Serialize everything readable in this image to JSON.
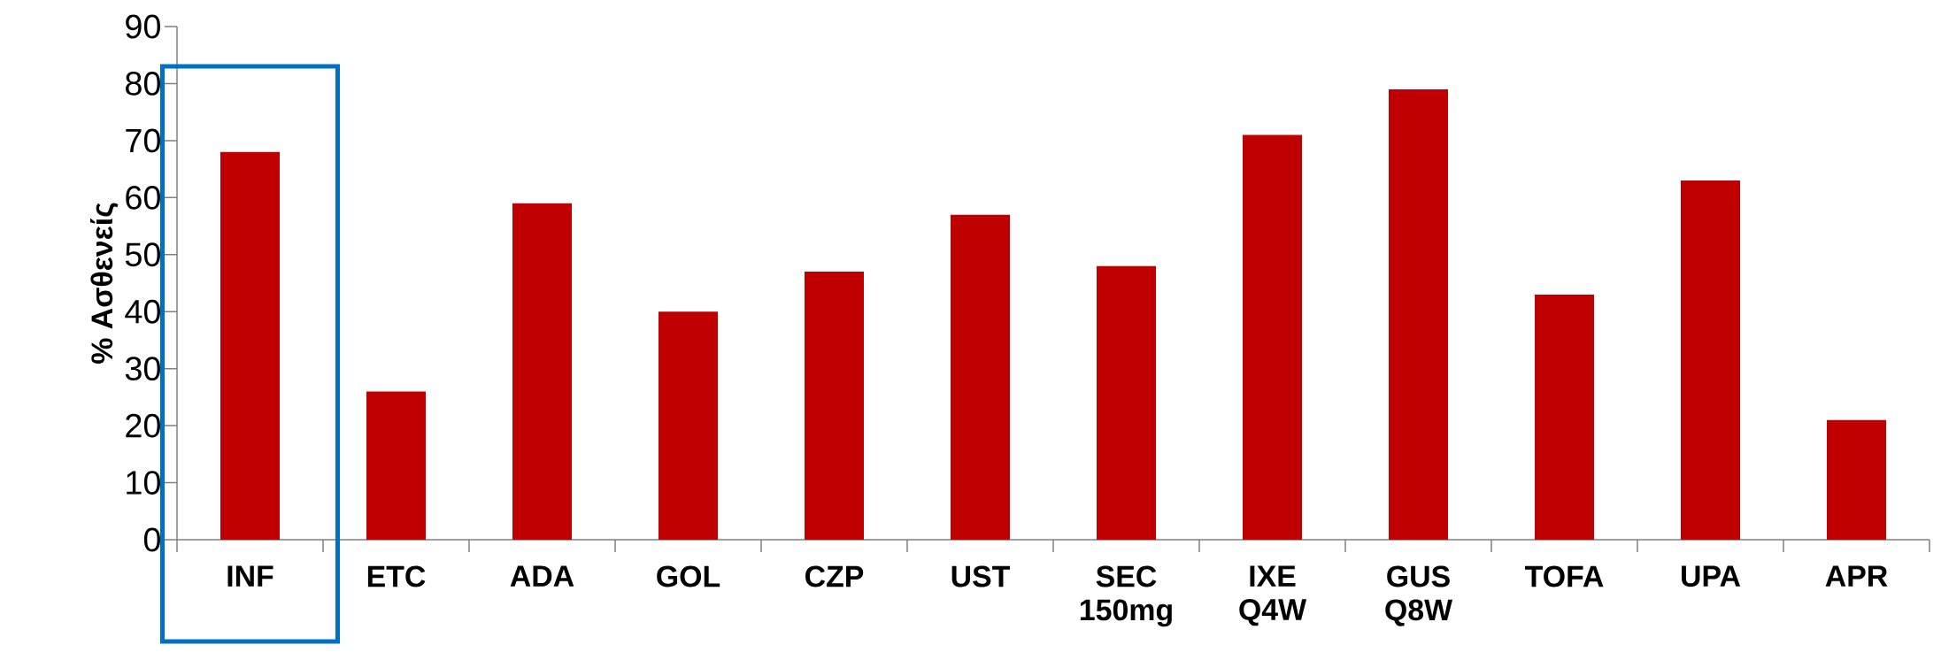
{
  "chart_data": {
    "type": "bar",
    "ylabel": "% Ασθενείς",
    "categories": [
      "INF",
      "ETC",
      "ADA",
      "GOL",
      "CZP",
      "UST",
      "SEC 150mg",
      "IXE Q4W",
      "GUS Q8W",
      "TOFA",
      "UPA",
      "APR"
    ],
    "values": [
      68,
      26,
      59,
      40,
      47,
      57,
      48,
      71,
      79,
      43,
      63,
      21
    ],
    "color": "#c00000",
    "ylim": [
      0,
      90
    ],
    "yticks": [
      0,
      10,
      20,
      30,
      40,
      50,
      60,
      70,
      80,
      90
    ],
    "grid": false
  }
}
